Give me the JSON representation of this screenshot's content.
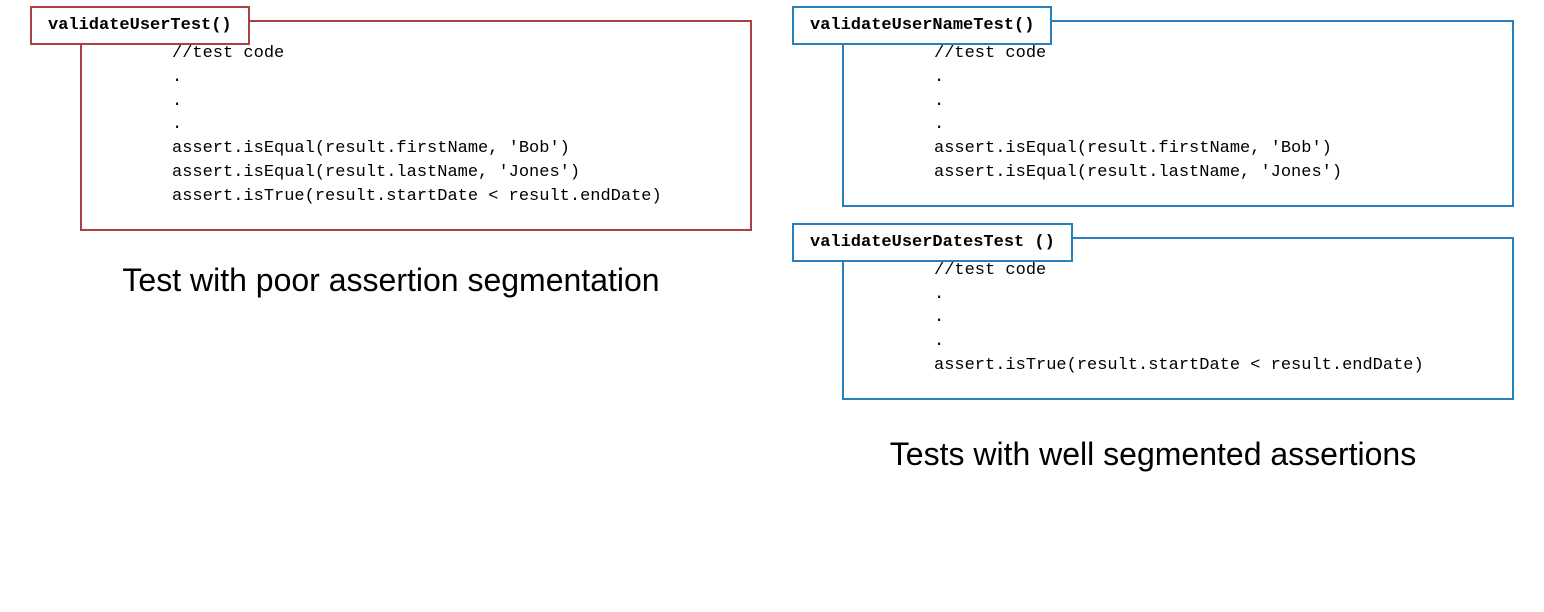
{
  "colors": {
    "red_border": "#a94142",
    "blue_border": "#2980b9",
    "background": "#ffffff",
    "text": "#000000"
  },
  "typography": {
    "code_font": "Courier New, monospace",
    "caption_font": "Arial, sans-serif",
    "code_fontsize": 17,
    "caption_fontsize": 32
  },
  "left": {
    "block1": {
      "title": "validateUserTest()",
      "border_color": "#a94142",
      "code": "//test code\n.\n.\n.\nassert.isEqual(result.firstName, 'Bob')\nassert.isEqual(result.lastName, 'Jones')\nassert.isTrue(result.startDate < result.endDate)"
    },
    "caption": "Test with poor assertion\nsegmentation"
  },
  "right": {
    "block1": {
      "title": "validateUserNameTest()",
      "border_color": "#2980b9",
      "code": "//test code\n.\n.\n.\nassert.isEqual(result.firstName, 'Bob')\nassert.isEqual(result.lastName, 'Jones')"
    },
    "block2": {
      "title": "validateUserDatesTest ()",
      "border_color": "#2980b9",
      "code": "//test code\n.\n.\n.\nassert.isTrue(result.startDate < result.endDate)"
    },
    "caption": "Tests with well segmented\nassertions"
  }
}
